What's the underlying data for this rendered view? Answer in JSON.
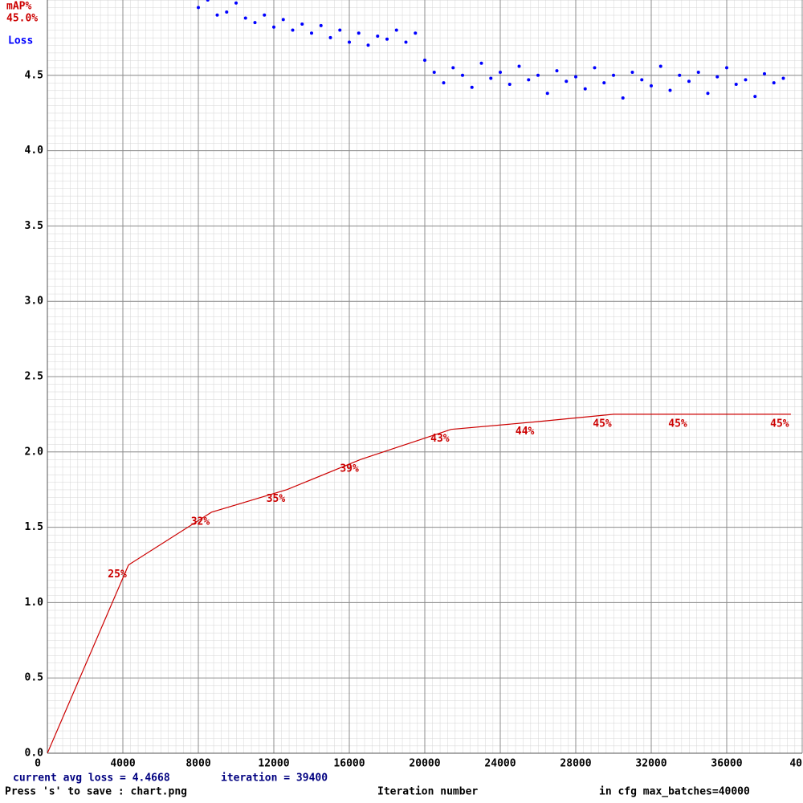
{
  "chart_data": {
    "type": "line",
    "y_label": "Loss",
    "y2_label": "mAP%",
    "y2_current": "45.0%",
    "x_label": "Iteration number",
    "status_loss": "current avg loss = 4.4668",
    "status_iteration": "iteration = 39400",
    "save_hint": "Press 's' to save : chart.png",
    "max_batches": "in cfg max_batches=40000",
    "xlim": [
      0,
      40000
    ],
    "xticks": [
      0,
      4000,
      8000,
      12000,
      16000,
      20000,
      24000,
      28000,
      32000,
      36000,
      {
        "value": 40000,
        "label": "40"
      }
    ],
    "ylim": [
      0,
      5
    ],
    "yticks": [
      {
        "value": 0,
        "label": "0.0"
      },
      0.5,
      {
        "value": 1,
        "label": "1.0"
      },
      1.5,
      {
        "value": 2,
        "label": "2.0"
      },
      2.5,
      {
        "value": 3,
        "label": "3.0"
      },
      3.5,
      {
        "value": 4,
        "label": "4.0"
      },
      4.5
    ],
    "y2lim": [
      0,
      100
    ],
    "grid": true,
    "series": [
      {
        "name": "Loss",
        "type": "scatter",
        "color": "#0000ff",
        "x": [
          8000,
          8500,
          9000,
          9500,
          10000,
          10500,
          11000,
          11500,
          12000,
          12500,
          13000,
          13500,
          14000,
          14500,
          15000,
          15500,
          16000,
          16500,
          17000,
          17500,
          18000,
          18500,
          19000,
          19500,
          20000,
          20500,
          21000,
          21500,
          22000,
          22500,
          23000,
          23500,
          24000,
          24500,
          25000,
          25500,
          26000,
          26500,
          27000,
          27500,
          28000,
          28500,
          29000,
          29500,
          30000,
          30500,
          31000,
          31500,
          32000,
          32500,
          33000,
          33500,
          34000,
          34500,
          35000,
          35500,
          36000,
          36500,
          37000,
          37500,
          38000,
          38500,
          39000
        ],
        "values": [
          4.95,
          5.0,
          4.9,
          4.92,
          4.98,
          4.88,
          4.85,
          4.9,
          4.82,
          4.87,
          4.8,
          4.84,
          4.78,
          4.83,
          4.75,
          4.8,
          4.72,
          4.78,
          4.7,
          4.76,
          4.74,
          4.8,
          4.72,
          4.78,
          4.6,
          4.52,
          4.45,
          4.55,
          4.5,
          4.42,
          4.58,
          4.48,
          4.52,
          4.44,
          4.56,
          4.47,
          4.5,
          4.38,
          4.53,
          4.46,
          4.49,
          4.41,
          4.55,
          4.45,
          4.5,
          4.35,
          4.52,
          4.47,
          4.43,
          4.56,
          4.4,
          4.5,
          4.46,
          4.52,
          4.38,
          4.49,
          4.55,
          4.44,
          4.47,
          4.36,
          4.51,
          4.45,
          4.48
        ]
      },
      {
        "name": "mAP%",
        "type": "line",
        "axis": "y2",
        "color": "#cc0000",
        "x": [
          0,
          4300,
          8700,
          12700,
          16600,
          21400,
          25900,
          30000,
          34000,
          39400
        ],
        "values": [
          0,
          25,
          32,
          35,
          39,
          43,
          44,
          45,
          45,
          45
        ],
        "value_labels": [
          null,
          "25%",
          "32%",
          "35%",
          "39%",
          "43%",
          "44%",
          "45%",
          "45%",
          "45%"
        ]
      }
    ]
  }
}
